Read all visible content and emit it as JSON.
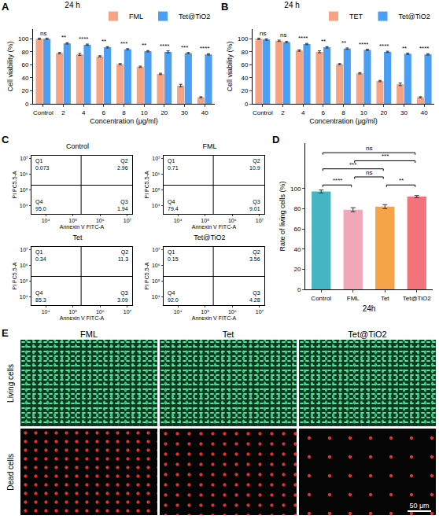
{
  "chart_data": [
    {
      "type": "bar",
      "panel_label": "A",
      "title": "24 h",
      "x_label": "Concentration (μg/ml)",
      "y_label": "Cell viability (%)",
      "categories": [
        "Control",
        "2",
        "4",
        "6",
        "8",
        "10",
        "20",
        "30",
        "40"
      ],
      "series": [
        {
          "name": "FML",
          "color": "#F4A384",
          "values": [
            100,
            78,
            76,
            73,
            61,
            57,
            46,
            28,
            10
          ],
          "error": [
            1,
            1,
            1.5,
            1,
            1,
            1,
            1,
            2,
            1
          ]
        },
        {
          "name": "Tet@TiO2",
          "color": "#4A9FF5",
          "values": [
            100,
            93,
            91,
            87,
            84,
            81,
            80,
            78,
            76
          ],
          "error": [
            1,
            1,
            1,
            1,
            1,
            1,
            1.5,
            1,
            1
          ]
        }
      ],
      "annotations": [
        {
          "x": "Control",
          "text": "ns"
        },
        {
          "x": "2",
          "text": "**"
        },
        {
          "x": "4",
          "text": "****"
        },
        {
          "x": "6",
          "text": "**"
        },
        {
          "x": "8",
          "text": "***"
        },
        {
          "x": "10",
          "text": "**"
        },
        {
          "x": "20",
          "text": "****"
        },
        {
          "x": "30",
          "text": "***"
        },
        {
          "x": "40",
          "text": "****"
        }
      ],
      "ylim": [
        0,
        115
      ],
      "yticks": [
        0,
        20,
        40,
        60,
        80,
        100
      ],
      "legend": "top right"
    },
    {
      "type": "bar",
      "panel_label": "B",
      "title": "24 h",
      "x_label": "Concentration (μg/ml)",
      "y_label": "Cell viability (%)",
      "categories": [
        "Control",
        "2",
        "4",
        "6",
        "8",
        "10",
        "20",
        "30",
        "40"
      ],
      "series": [
        {
          "name": "TET",
          "color": "#F4A384",
          "values": [
            100,
            97,
            82,
            80,
            61,
            47,
            35,
            30,
            10
          ],
          "error": [
            1,
            1,
            1,
            1.5,
            1,
            1,
            1,
            2,
            1
          ]
        },
        {
          "name": "Tet@TiO2",
          "color": "#4A9FF5",
          "values": [
            99,
            95,
            92,
            87,
            85,
            83,
            80,
            77,
            76
          ],
          "error": [
            1,
            1,
            1,
            1,
            1,
            1,
            1,
            1,
            1
          ]
        }
      ],
      "annotations": [
        {
          "x": "Control",
          "text": "ns"
        },
        {
          "x": "2",
          "text": "ns"
        },
        {
          "x": "4",
          "text": "****"
        },
        {
          "x": "6",
          "text": "**"
        },
        {
          "x": "8",
          "text": "**"
        },
        {
          "x": "10",
          "text": "****"
        },
        {
          "x": "20",
          "text": "****"
        },
        {
          "x": "30",
          "text": "**"
        },
        {
          "x": "40",
          "text": "****"
        }
      ],
      "ylim": [
        0,
        115
      ],
      "yticks": [
        0,
        20,
        40,
        60,
        80,
        100
      ],
      "legend": "top right"
    },
    {
      "type": "flow_cytometry",
      "panel_label": "C",
      "title": "Control",
      "x_label": "Annexin V FITC-A",
      "y_label": "PI PC5.5-A",
      "log": true,
      "xlim": [
        3000,
        15000000
      ],
      "ylim": [
        3000,
        15000000
      ],
      "xticks": [
        {
          "value": 10000,
          "label": "10⁴"
        },
        {
          "value": 100000,
          "label": "10⁵"
        },
        {
          "value": 1000000,
          "label": "10⁶"
        },
        {
          "value": 10000000,
          "label": "10⁷"
        }
      ],
      "yticks": [
        {
          "value": 10000,
          "label": "10⁴"
        },
        {
          "value": 100000,
          "label": "10⁵"
        },
        {
          "value": 1000000,
          "label": "10⁶"
        },
        {
          "value": 10000000,
          "label": "10⁷"
        }
      ],
      "gate": {
        "x": 200000,
        "y": 200000
      },
      "quadrants": [
        {
          "name": "Q1",
          "value": 0.073
        },
        {
          "name": "Q2",
          "value": 2.96
        },
        {
          "name": "Q3",
          "value": 1.94
        },
        {
          "name": "Q4",
          "value": 95,
          "label": "95.0"
        }
      ]
    },
    {
      "type": "flow_cytometry",
      "title": "FML",
      "x_label": "Annexin V FITC-A",
      "y_label": "PI PC5.5-A",
      "log": true,
      "xlim": [
        3000,
        15000000
      ],
      "ylim": [
        3000,
        15000000
      ],
      "xticks": [
        {
          "value": 10000,
          "label": "10⁴"
        },
        {
          "value": 100000,
          "label": "10⁵"
        },
        {
          "value": 1000000,
          "label": "10⁶"
        },
        {
          "value": 10000000,
          "label": "10⁷"
        }
      ],
      "yticks": [
        {
          "value": 10000,
          "label": "10⁴"
        },
        {
          "value": 100000,
          "label": "10⁵"
        },
        {
          "value": 1000000,
          "label": "10⁶"
        },
        {
          "value": 10000000,
          "label": "10⁷"
        }
      ],
      "gate": {
        "x": 200000,
        "y": 200000
      },
      "quadrants": [
        {
          "name": "Q1",
          "value": 0.71
        },
        {
          "name": "Q2",
          "value": 10.9
        },
        {
          "name": "Q3",
          "value": 9.01
        },
        {
          "name": "Q4",
          "value": 79.4
        }
      ]
    },
    {
      "type": "flow_cytometry",
      "title": "Tet",
      "x_label": "Annexin V FITC-A",
      "y_label": "PI PC5.5-A",
      "log": true,
      "xlim": [
        3000,
        15000000
      ],
      "ylim": [
        3000,
        15000000
      ],
      "xticks": [
        {
          "value": 10000,
          "label": "10⁴"
        },
        {
          "value": 100000,
          "label": "10⁵"
        },
        {
          "value": 1000000,
          "label": "10⁶"
        },
        {
          "value": 10000000,
          "label": "10⁷"
        }
      ],
      "yticks": [
        {
          "value": 10000,
          "label": "10⁴"
        },
        {
          "value": 100000,
          "label": "10⁵"
        },
        {
          "value": 1000000,
          "label": "10⁶"
        },
        {
          "value": 10000000,
          "label": "10⁷"
        }
      ],
      "gate": {
        "x": 200000,
        "y": 200000
      },
      "quadrants": [
        {
          "name": "Q1",
          "value": 0.34
        },
        {
          "name": "Q2",
          "value": 11.3
        },
        {
          "name": "Q3",
          "value": 3.09
        },
        {
          "name": "Q4",
          "value": 85.3
        }
      ]
    },
    {
      "type": "flow_cytometry",
      "title": "Tet@TiO2",
      "x_label": "Annexin V FITC-A",
      "y_label": "PI PC5.5-A",
      "log": true,
      "xlim": [
        3000,
        15000000
      ],
      "ylim": [
        3000,
        15000000
      ],
      "xticks": [
        {
          "value": 10000,
          "label": "10⁴"
        },
        {
          "value": 100000,
          "label": "10⁵"
        },
        {
          "value": 1000000,
          "label": "10⁶"
        },
        {
          "value": 10000000,
          "label": "10⁷"
        }
      ],
      "yticks": [
        {
          "value": 10000,
          "label": "10⁴"
        },
        {
          "value": 100000,
          "label": "10⁵"
        },
        {
          "value": 1000000,
          "label": "10⁶"
        },
        {
          "value": 10000000,
          "label": "10⁷"
        }
      ],
      "gate": {
        "x": 200000,
        "y": 200000
      },
      "quadrants": [
        {
          "name": "Q1",
          "value": 0.15
        },
        {
          "name": "Q2",
          "value": 3.56
        },
        {
          "name": "Q3",
          "value": 4.28
        },
        {
          "name": "Q4",
          "value": 92,
          "label": "92.0"
        }
      ]
    },
    {
      "type": "bar",
      "panel_label": "D",
      "x_label": "24h",
      "y_label": "Rate of living cells (%)",
      "categories": [
        "Control",
        "FML",
        "Tet",
        "Tet@TiO2"
      ],
      "values": [
        97,
        79,
        82,
        92
      ],
      "error": [
        1.5,
        2,
        2,
        1
      ],
      "colors": [
        "#45B5C4",
        "#F2A7B9",
        "#F7A448",
        "#F2737B"
      ],
      "comparisons": [
        {
          "pair": [
            "Control",
            "FML"
          ],
          "text": "****"
        },
        {
          "pair": [
            "Tet",
            "Tet@TiO2"
          ],
          "text": "**"
        },
        {
          "pair": [
            "FML",
            "Tet"
          ],
          "text": "ns"
        },
        {
          "pair": [
            "Control",
            "Tet"
          ],
          "text": "***"
        },
        {
          "pair": [
            "FML",
            "Tet@TiO2"
          ],
          "text": "***"
        },
        {
          "pair": [
            "Control",
            "Tet@TiO2"
          ],
          "text": "ns"
        }
      ],
      "ylim": [
        0,
        145
      ],
      "yticks": [
        0,
        20,
        40,
        60,
        80,
        100
      ]
    },
    {
      "type": "image_grid",
      "panel_label": "E",
      "columns": [
        "FML",
        "Tet",
        "Tet@TiO2"
      ],
      "rows": [
        "Living cells",
        "Dead cells"
      ],
      "scale_bar": "50 μm"
    }
  ]
}
